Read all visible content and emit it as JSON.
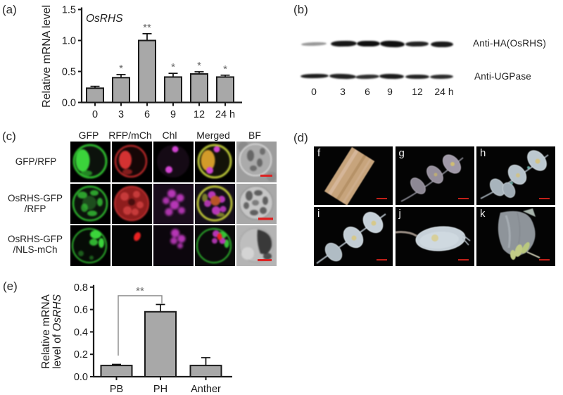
{
  "panels": {
    "a": {
      "label": "(a)"
    },
    "b": {
      "label": "(b)",
      "antibody_labels": [
        "Anti-HA(OsRHS)",
        "Anti-UGPase"
      ],
      "lane_labels": [
        "0",
        "3",
        "6",
        "9",
        "12",
        "24 h"
      ]
    },
    "c": {
      "label": "(c)",
      "column_headers": [
        "GFP",
        "RFP/mCh",
        "Chl",
        "Merged",
        "BF"
      ],
      "row_labels": [
        {
          "line1": "GFP/RFP",
          "line2": ""
        },
        {
          "line1": "OsRHS-GFP",
          "line2": "/RFP"
        },
        {
          "line1": "OsRHS-GFP",
          "line2": "/NLS-mCh"
        }
      ]
    },
    "d": {
      "label": "(d)",
      "image_labels": [
        "f",
        "g",
        "h",
        "i",
        "j",
        "k"
      ]
    },
    "e": {
      "label": "(e)"
    }
  },
  "chart_data": [
    {
      "id": "panel-a-chart",
      "type": "bar",
      "title": "OsRHS",
      "categories": [
        "0",
        "3",
        "6",
        "9",
        "12",
        "24 h"
      ],
      "values": [
        0.23,
        0.4,
        1.0,
        0.41,
        0.46,
        0.41
      ],
      "errors": [
        0.03,
        0.05,
        0.11,
        0.06,
        0.035,
        0.03
      ],
      "significance": [
        "",
        "*",
        "**",
        "*",
        "*",
        "*"
      ],
      "xlabel": "",
      "ylabel": "Relative mRNA level",
      "yticks": [
        "0.0",
        "0.5",
        "1.0",
        "1.5"
      ],
      "ylim": [
        0,
        1.5
      ],
      "grid": false,
      "bar_color": "#a8a8a8"
    },
    {
      "id": "panel-e-chart",
      "type": "bar",
      "categories": [
        "PB",
        "PH",
        "Anther"
      ],
      "values": [
        0.1,
        0.58,
        0.1
      ],
      "errors": [
        0.01,
        0.065,
        0.07
      ],
      "significance_bracket": {
        "from": "PB",
        "to": "PH",
        "label": "**"
      },
      "xlabel": "",
      "ylabel_lines": [
        "Relative mRNA",
        "level of OsRHS"
      ],
      "ylabel_italic_word": "OsRHS",
      "yticks": [
        "0.0",
        "0.2",
        "0.4",
        "0.6",
        "0.8"
      ],
      "ylim": [
        0,
        0.8
      ],
      "grid": false,
      "bar_color": "#a8a8a8"
    }
  ]
}
